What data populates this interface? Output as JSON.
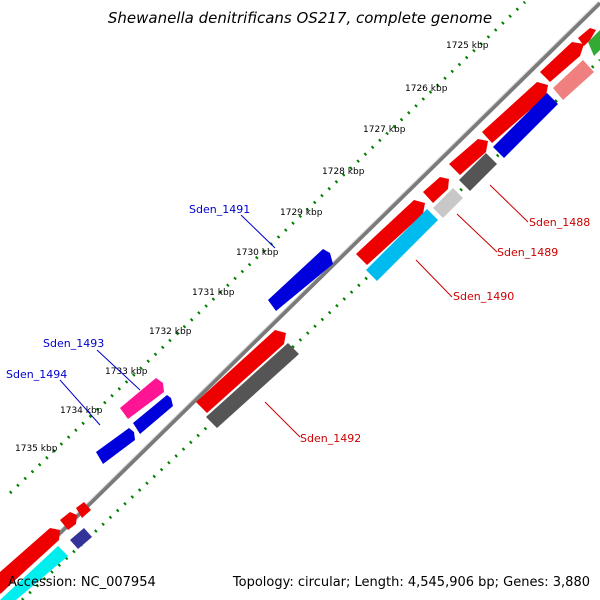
{
  "title": "Shewanella denitrificans OS217, complete genome",
  "footer": {
    "accession": "Accession: NC_007954",
    "summary": "Topology: circular; Length: 4,545,906 bp; Genes: 3,880"
  },
  "colors": {
    "backbone": "#808080",
    "dots_outer": "#008000",
    "dots_inner": "#008000",
    "forward_label": "#0000cc",
    "reverse_label": "#cc0000",
    "forward_gene": "#0000dd",
    "reverse_gene": "#ee0000"
  },
  "kbp_ticks": [
    "1725 kbp",
    "1726 kbp",
    "1727 kbp",
    "1728 kbp",
    "1729 kbp",
    "1730 kbp",
    "1731 kbp",
    "1732 kbp",
    "1733 kbp",
    "1734 kbp",
    "1735 kbp"
  ],
  "gene_labels": {
    "sden_1491": "Sden_1491",
    "sden_1493": "Sden_1493",
    "sden_1494": "Sden_1494",
    "sden_1488": "Sden_1488",
    "sden_1489": "Sden_1489",
    "sden_1490": "Sden_1490",
    "sden_1492": "Sden_1492"
  }
}
